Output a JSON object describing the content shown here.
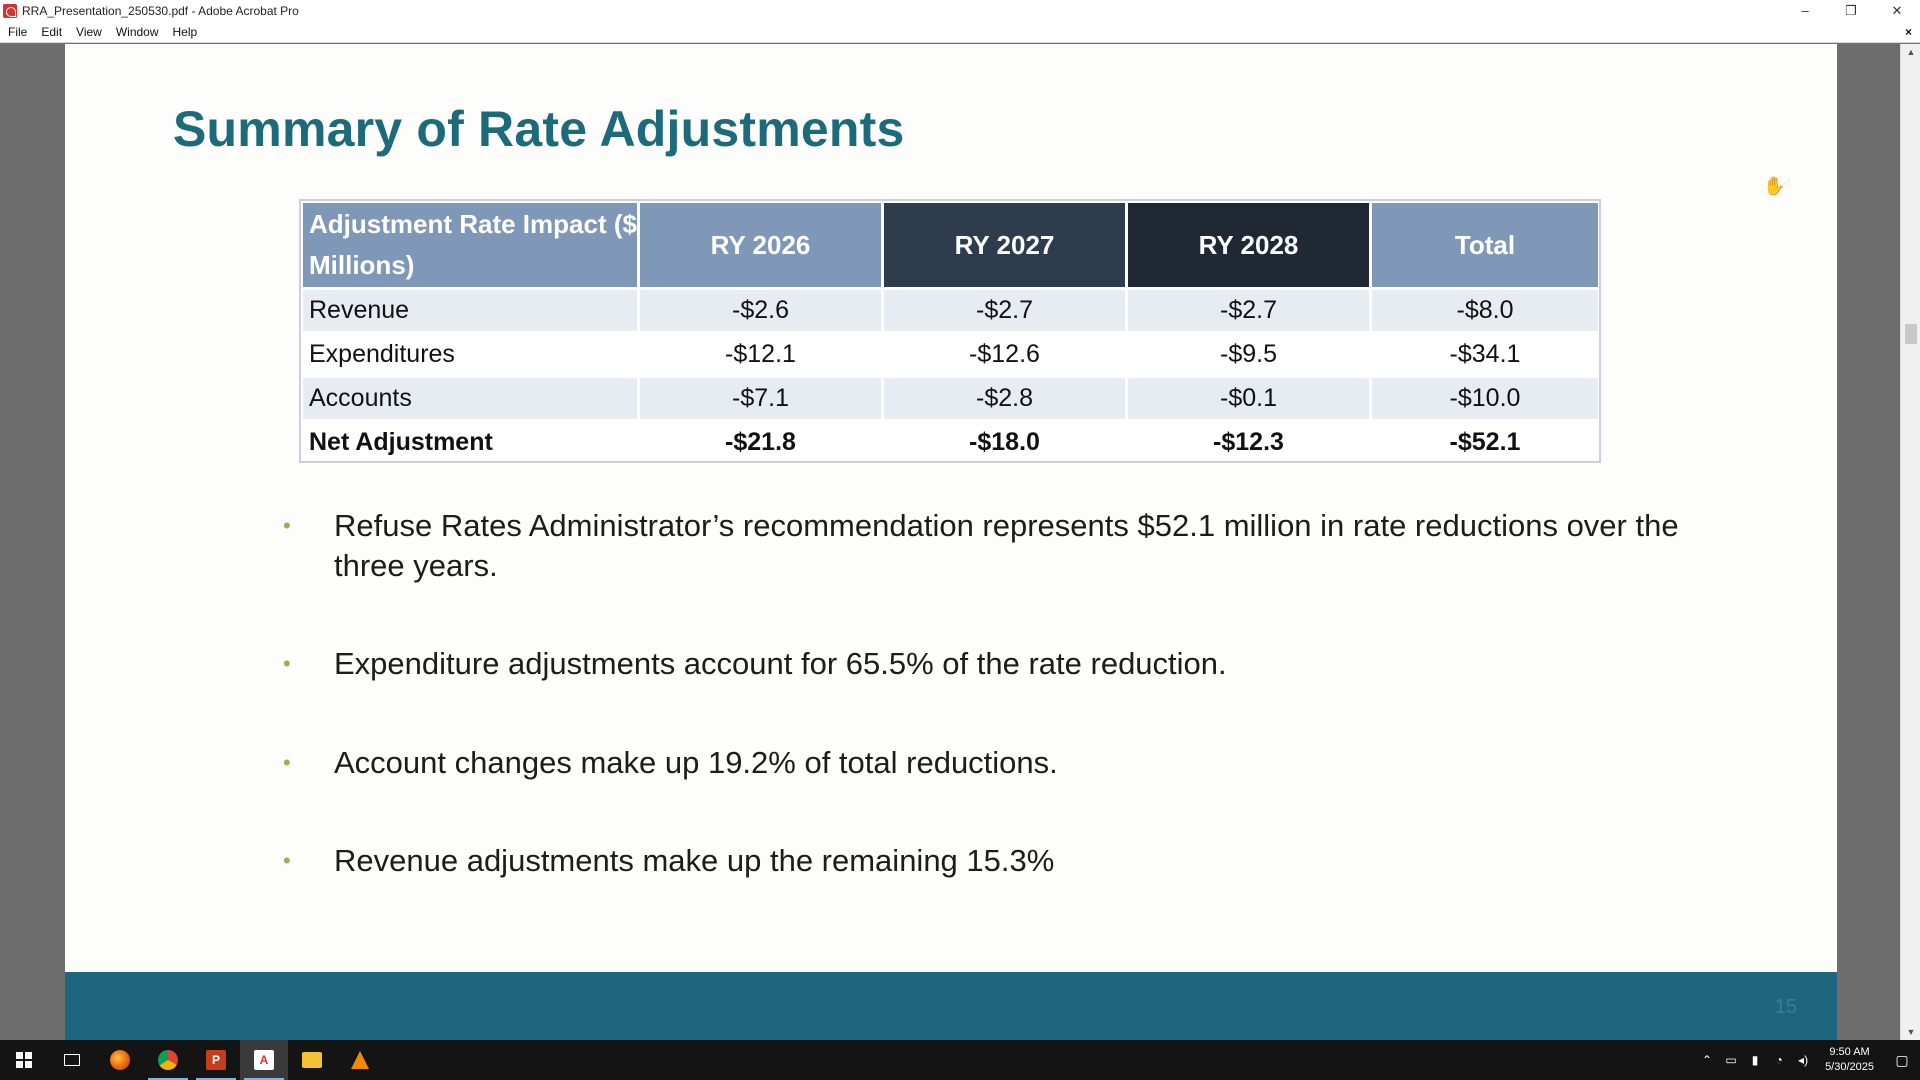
{
  "window": {
    "title": "RRA_Presentation_250530.pdf - Adobe Acrobat Pro",
    "minimize": "–",
    "restore": "❐",
    "close": "✕"
  },
  "menu": {
    "items": [
      "File",
      "Edit",
      "View",
      "Window",
      "Help"
    ],
    "close_doc": "×"
  },
  "slide": {
    "title": "Summary of Rate Adjustments",
    "page_number": "15",
    "table": {
      "header": {
        "row_label": "Adjustment Rate Impact ($ Millions)",
        "ry2026": "RY 2026",
        "ry2027": "RY 2027",
        "ry2028": "RY 2028",
        "total": "Total"
      },
      "rows": [
        {
          "label": "Revenue",
          "ry2026": "-$2.6",
          "ry2027": "-$2.7",
          "ry2028": "-$2.7",
          "total": "-$8.0"
        },
        {
          "label": "Expenditures",
          "ry2026": "-$12.1",
          "ry2027": "-$12.6",
          "ry2028": "-$9.5",
          "total": "-$34.1"
        },
        {
          "label": "Accounts",
          "ry2026": "-$7.1",
          "ry2027": "-$2.8",
          "ry2028": "-$0.1",
          "total": "-$10.0"
        },
        {
          "label": "Net Adjustment",
          "ry2026": "-$21.8",
          "ry2027": "-$18.0",
          "ry2028": "-$12.3",
          "total": "-$52.1"
        }
      ]
    },
    "bullets": [
      "Refuse Rates Administrator’s recommendation represents $52.1 million in rate reductions over the three years.",
      "Expenditure adjustments account for 65.5% of the rate reduction.",
      "Account changes make up 19.2% of total reductions.",
      "Revenue adjustments make up the remaining 15.3%"
    ],
    "bullet_glyph": "•"
  },
  "taskbar": {
    "apps": [
      "start",
      "task-view",
      "firefox",
      "chrome",
      "powerpoint",
      "acrobat",
      "file-explorer",
      "vlc"
    ],
    "clock_time": "9:50 AM",
    "clock_date": "5/30/2025"
  },
  "colors": {
    "title": "#1d6a7a",
    "header_light": "#7f98b8",
    "header_dark": "#2e3d4d",
    "header_darkest": "#1f2833",
    "footer_band": "#1e6680",
    "bullet": "#8db84a"
  }
}
